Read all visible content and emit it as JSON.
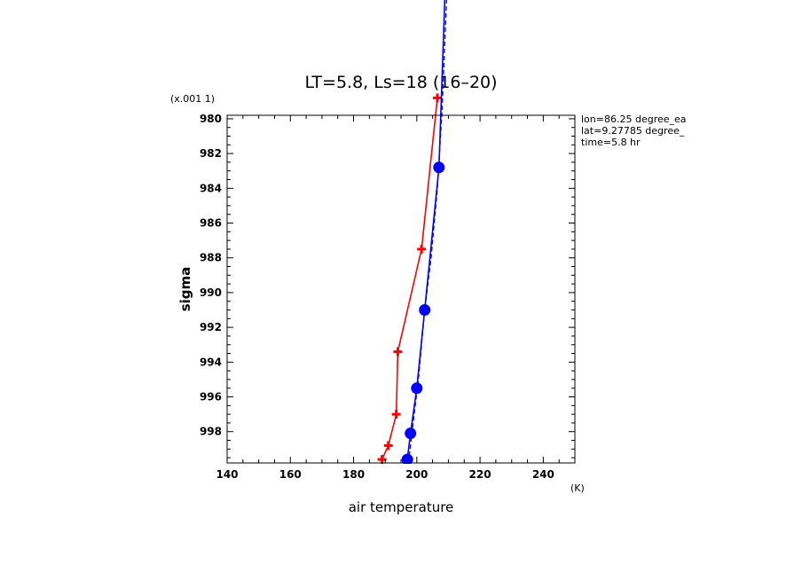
{
  "chart_data": {
    "type": "line",
    "title": "LT=5.8, Ls=18 (16–20)",
    "xlabel": "air temperature",
    "xunit": "(K)",
    "ylabel": "sigma",
    "yscale_note": "(x.001 1)",
    "xlim": [
      140,
      250
    ],
    "ylim": [
      979.8,
      999.8
    ],
    "ylim_display_inverted": true,
    "x_ticks": [
      140,
      160,
      180,
      200,
      220,
      240
    ],
    "y_ticks": [
      980,
      982,
      984,
      986,
      988,
      990,
      992,
      994,
      996,
      998
    ],
    "grid": false,
    "annotations": [
      "lon=86.25 degree_ea",
      "lat=9.27785 degree_",
      "time=5.8 hr"
    ],
    "series": [
      {
        "color": "#ff0000",
        "marker": "plus",
        "line_style": "solid",
        "points": [
          {
            "x": 206.5,
            "y": 978.8
          },
          {
            "x": 201.5,
            "y": 987.5
          },
          {
            "x": 194.0,
            "y": 993.4
          },
          {
            "x": 193.5,
            "y": 997.0
          },
          {
            "x": 191.0,
            "y": 998.8
          },
          {
            "x": 189.0,
            "y": 999.6
          }
        ]
      },
      {
        "color": "#0000ff",
        "marker": "circle",
        "line_style": "solid",
        "points": [
          {
            "x": 210.0,
            "y": 967.0
          },
          {
            "x": 207.0,
            "y": 982.8
          },
          {
            "x": 202.5,
            "y": 991.0
          },
          {
            "x": 200.0,
            "y": 995.5
          },
          {
            "x": 198.0,
            "y": 998.1
          },
          {
            "x": 197.0,
            "y": 999.6
          }
        ]
      },
      {
        "color": "#0000ff",
        "marker": "none",
        "line_style": "dashed",
        "points": [
          {
            "x": 210.8,
            "y": 967.0
          },
          {
            "x": 208.0,
            "y": 979.5
          },
          {
            "x": 206.5,
            "y": 984.0
          },
          {
            "x": 204.5,
            "y": 988.0
          },
          {
            "x": 202.5,
            "y": 991.0
          },
          {
            "x": 200.5,
            "y": 995.0
          },
          {
            "x": 198.5,
            "y": 998.0
          },
          {
            "x": 197.5,
            "y": 999.6
          }
        ]
      }
    ]
  }
}
